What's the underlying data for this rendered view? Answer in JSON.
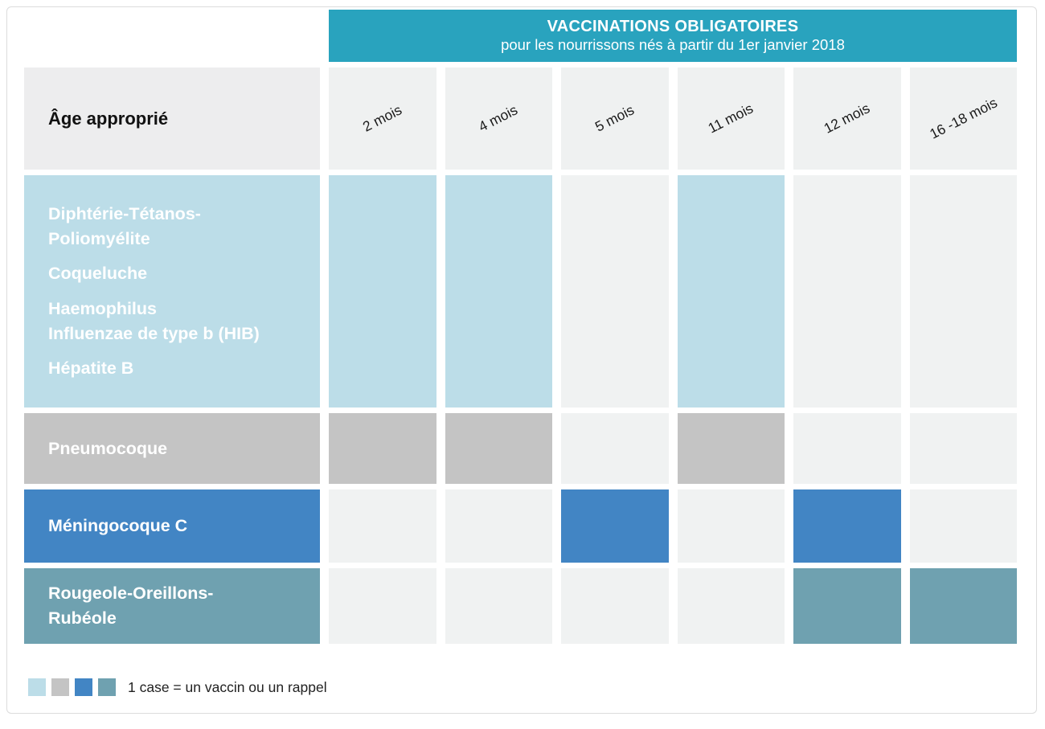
{
  "banner": {
    "title": "VACCINATIONS OBLIGATOIRES",
    "subtitle": "pour les nourrissons nés à partir du 1er janvier 2018",
    "bg_color": "#29a3be"
  },
  "table": {
    "corner_label": "Âge approprié",
    "columns": [
      "2 mois",
      "4 mois",
      "5 mois",
      "11 mois",
      "12 mois",
      "16 -18 mois"
    ],
    "empty_cell_color": "#f0f2f2",
    "rows": [
      {
        "key": "dtp-coqueluche-hib-hepatiteb",
        "label_items": [
          "Diphtérie-Tétanos-\nPoliomyélite",
          "Coqueluche",
          "Haemophilus\nInfluenzae de type b (HIB)",
          "Hépatite B"
        ],
        "color": "#bcdde8",
        "cells": [
          true,
          true,
          false,
          true,
          false,
          false
        ]
      },
      {
        "key": "pneumocoque",
        "label_items": [
          "Pneumocoque"
        ],
        "color": "#c4c4c4",
        "cells": [
          true,
          true,
          false,
          true,
          false,
          false
        ]
      },
      {
        "key": "meningocoque-c",
        "label_items": [
          "Méningocoque C"
        ],
        "color": "#4285c4",
        "cells": [
          false,
          false,
          true,
          false,
          true,
          false
        ]
      },
      {
        "key": "rougeole-oreillons-rubeole",
        "label_items": [
          "Rougeole-Oreillons-\nRubéole"
        ],
        "color": "#6fa1b0",
        "cells": [
          false,
          false,
          false,
          false,
          true,
          true
        ]
      }
    ]
  },
  "legend": {
    "swatches": [
      "#bcdde8",
      "#c4c4c4",
      "#4285c4",
      "#6fa1b0"
    ],
    "label": "1 case = un vaccin ou un rappel"
  },
  "chart_data": {
    "type": "table",
    "title": "VACCINATIONS OBLIGATOIRES",
    "subtitle": "pour les nourrissons nés à partir du 1er janvier 2018",
    "columns": [
      "2 mois",
      "4 mois",
      "5 mois",
      "11 mois",
      "12 mois",
      "16 -18 mois"
    ],
    "rows": [
      {
        "label": "Diphtérie-Tétanos-Poliomyélite, Coqueluche, Haemophilus Influenzae de type b (HIB), Hépatite B",
        "marks": [
          1,
          1,
          0,
          1,
          0,
          0
        ],
        "doses_at": [
          "2 mois",
          "4 mois",
          "11 mois"
        ],
        "color": "#bcdde8"
      },
      {
        "label": "Pneumocoque",
        "marks": [
          1,
          1,
          0,
          1,
          0,
          0
        ],
        "doses_at": [
          "2 mois",
          "4 mois",
          "11 mois"
        ],
        "color": "#c4c4c4"
      },
      {
        "label": "Méningocoque C",
        "marks": [
          0,
          0,
          1,
          0,
          1,
          0
        ],
        "doses_at": [
          "5 mois",
          "12 mois"
        ],
        "color": "#4285c4"
      },
      {
        "label": "Rougeole-Oreillons-Rubéole",
        "marks": [
          0,
          0,
          0,
          0,
          1,
          1
        ],
        "doses_at": [
          "12 mois",
          "16 -18 mois"
        ],
        "color": "#6fa1b0"
      }
    ],
    "legend": "1 case = un vaccin ou un rappel",
    "note": "grid of colored squares; 1 filled square = one vaccine dose or booster at that age"
  }
}
